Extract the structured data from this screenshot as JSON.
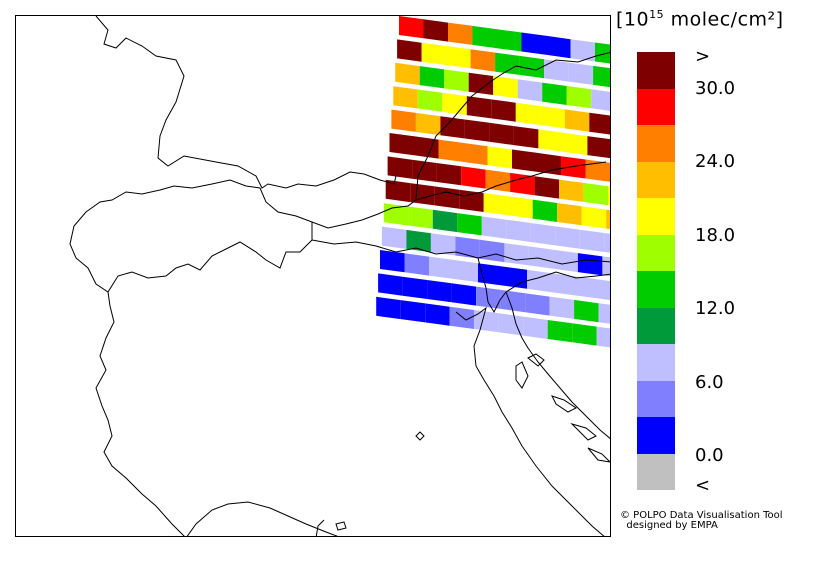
{
  "legend": {
    "unit_prefix": "[10",
    "unit_exp": "15",
    "unit_suffix": " molec/cm²]",
    "colors": [
      "#7f0000",
      "#ff0000",
      "#ff7f00",
      "#ffbf00",
      "#ffff00",
      "#9fff00",
      "#00cc00",
      "#009a3a",
      "#bfbfff",
      "#8080ff",
      "#0000ff",
      "#c0c0c0"
    ],
    "labels": [
      ">",
      "30.0",
      "24.0",
      "18.0",
      "12.0",
      "6.0",
      "0.0",
      "<"
    ]
  },
  "credit": {
    "line1": "© POLPO Data Visualisation Tool",
    "line2": "designed by EMPA"
  },
  "swath": {
    "rows": [
      [
        "red",
        "dred",
        "orange",
        "green",
        "green",
        "blue",
        "blue",
        "lav",
        "green",
        "green",
        "green",
        "green"
      ],
      [
        "dred",
        "yellow",
        "yellow",
        "orange",
        "green",
        "green",
        "lav",
        "lav",
        "green",
        "lav",
        "green",
        "lav"
      ],
      [
        "amber",
        "green",
        "lime",
        "dred",
        "yellow",
        "lav",
        "green",
        "lime",
        "lav",
        "lav",
        "lav",
        "lav"
      ],
      [
        "amber",
        "lime",
        "yellow",
        "dred",
        "dred",
        "yellow",
        "yellow",
        "amber",
        "dred",
        "yellow",
        "yellow",
        "green"
      ],
      [
        "orange",
        "amber",
        "dred",
        "dred",
        "dred",
        "dred",
        "yellow",
        "yellow",
        "dred",
        "red",
        "dred",
        "dred"
      ],
      [
        "dred",
        "dred",
        "orange",
        "orange",
        "yellow",
        "dred",
        "dred",
        "red",
        "orange",
        "red",
        "red",
        "orange"
      ],
      [
        "dred",
        "dred",
        "dred",
        "red",
        "orange",
        "red",
        "dred",
        "amber",
        "lime",
        "yellow",
        "lime",
        "green"
      ],
      [
        "dred",
        "dred",
        "dred",
        "dred",
        "yellow",
        "yellow",
        "green",
        "amber",
        "yellow",
        "amber",
        "orange",
        "red"
      ],
      [
        "lime",
        "lime",
        "dgreen",
        "green",
        "lav",
        "lav",
        "lav",
        "lav",
        "lav",
        "lav",
        "lav",
        "lav"
      ],
      [
        "lav",
        "dgreen",
        "lav",
        "periw",
        "periw",
        "lav",
        "lav",
        "lav",
        "blue",
        "lav",
        "periw",
        "lav"
      ],
      [
        "blue",
        "periw",
        "lav",
        "lav",
        "blue",
        "blue",
        "lav",
        "lav",
        "lav",
        "lav",
        "lav",
        "lav"
      ],
      [
        "blue",
        "blue",
        "blue",
        "blue",
        "periw",
        "periw",
        "periw",
        "lav",
        "green",
        "lav",
        "lav",
        "lav"
      ],
      [
        "blue",
        "blue",
        "blue",
        "periw",
        "lav",
        "lav",
        "lav",
        "green",
        "green",
        "lav",
        "green",
        "green"
      ]
    ]
  }
}
